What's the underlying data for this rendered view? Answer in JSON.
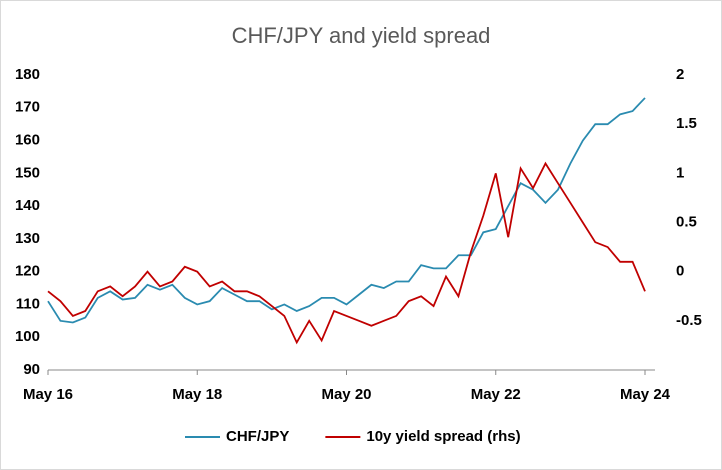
{
  "chart_data": {
    "type": "line",
    "title": "CHF/JPY and yield spread",
    "categories": [
      "May 16",
      null,
      null,
      null,
      null,
      null,
      null,
      null,
      null,
      null,
      null,
      null,
      "May 18",
      null,
      null,
      null,
      null,
      null,
      null,
      null,
      null,
      null,
      null,
      null,
      "May 20",
      null,
      null,
      null,
      null,
      null,
      null,
      null,
      null,
      null,
      null,
      null,
      "May 22",
      null,
      null,
      null,
      null,
      null,
      null,
      null,
      null,
      null,
      null,
      null,
      "May 24"
    ],
    "series": [
      {
        "name": "CHF/JPY",
        "color": "#2a8bb0",
        "values": [
          111,
          105,
          104.5,
          106,
          112,
          114,
          111.5,
          112,
          116,
          114.5,
          116,
          112,
          110,
          111,
          115,
          113,
          111,
          111,
          108.5,
          110,
          108,
          109.5,
          112,
          112,
          110,
          113,
          116,
          115,
          117,
          117,
          122,
          121,
          121,
          125,
          125,
          132,
          133,
          140,
          147,
          145,
          141,
          145,
          153,
          160,
          165,
          165,
          168,
          169,
          173
        ]
      },
      {
        "name": "10y yield spread (rhs)",
        "color": "#c00000",
        "axis": "y2",
        "values": [
          -0.2,
          -0.3,
          -0.45,
          -0.4,
          -0.2,
          -0.15,
          -0.25,
          -0.15,
          0,
          -0.15,
          -0.1,
          0.05,
          0,
          -0.15,
          -0.1,
          -0.2,
          -0.2,
          -0.25,
          -0.35,
          -0.45,
          -0.72,
          -0.5,
          -0.7,
          -0.4,
          -0.45,
          -0.5,
          -0.55,
          -0.5,
          -0.45,
          -0.3,
          -0.25,
          -0.35,
          -0.05,
          -0.25,
          0.2,
          0.57,
          1.0,
          0.35,
          1.05,
          0.85,
          1.1,
          0.9,
          0.7,
          0.5,
          0.3,
          0.25,
          0.1,
          0.1,
          -0.2
        ]
      }
    ],
    "ylim": [
      90,
      180
    ],
    "yticks": [
      90,
      100,
      110,
      120,
      130,
      140,
      150,
      160,
      170,
      180
    ],
    "y2lim": [
      -1,
      2
    ],
    "y2ticks": [
      -0.5,
      0,
      0.5,
      1,
      1.5,
      2
    ],
    "grid": false,
    "legend": "bottom"
  }
}
